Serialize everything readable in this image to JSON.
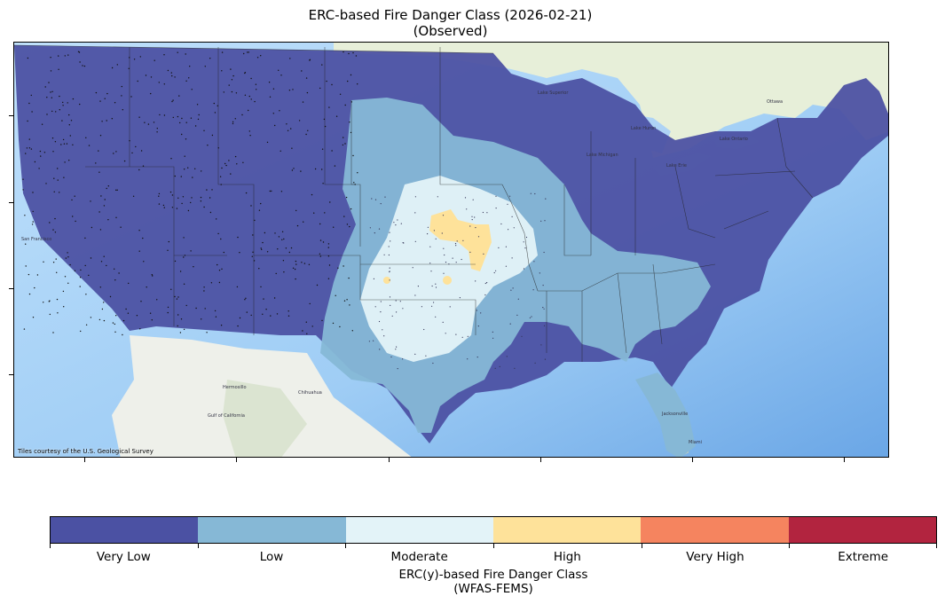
{
  "title": {
    "line1": "ERC-based Fire Danger Class (2026-02-21)",
    "line2": "(Observed)"
  },
  "map": {
    "attribution": "Tiles courtesy of the U.S. Geological Survey",
    "place_labels": [
      "San Francisco",
      "Chihuahua",
      "Hermosillo",
      "Gulf of California",
      "Jacksonville",
      "Miami",
      "Ottawa",
      "Lake Superior",
      "Lake Michigan",
      "Lake Huron",
      "Lake Erie",
      "Lake Ontario"
    ]
  },
  "legend": {
    "classes": [
      {
        "label": "Very Low",
        "color": "#4b51a3"
      },
      {
        "label": "Low",
        "color": "#86b8d6"
      },
      {
        "label": "Moderate",
        "color": "#e3f3f8"
      },
      {
        "label": "High",
        "color": "#fee29a"
      },
      {
        "label": "Very High",
        "color": "#f5845f"
      },
      {
        "label": "Extreme",
        "color": "#b2243f"
      }
    ],
    "title_line1": "ERC(y)-based Fire Danger Class",
    "title_line2": "(WFAS-FEMS)"
  }
}
